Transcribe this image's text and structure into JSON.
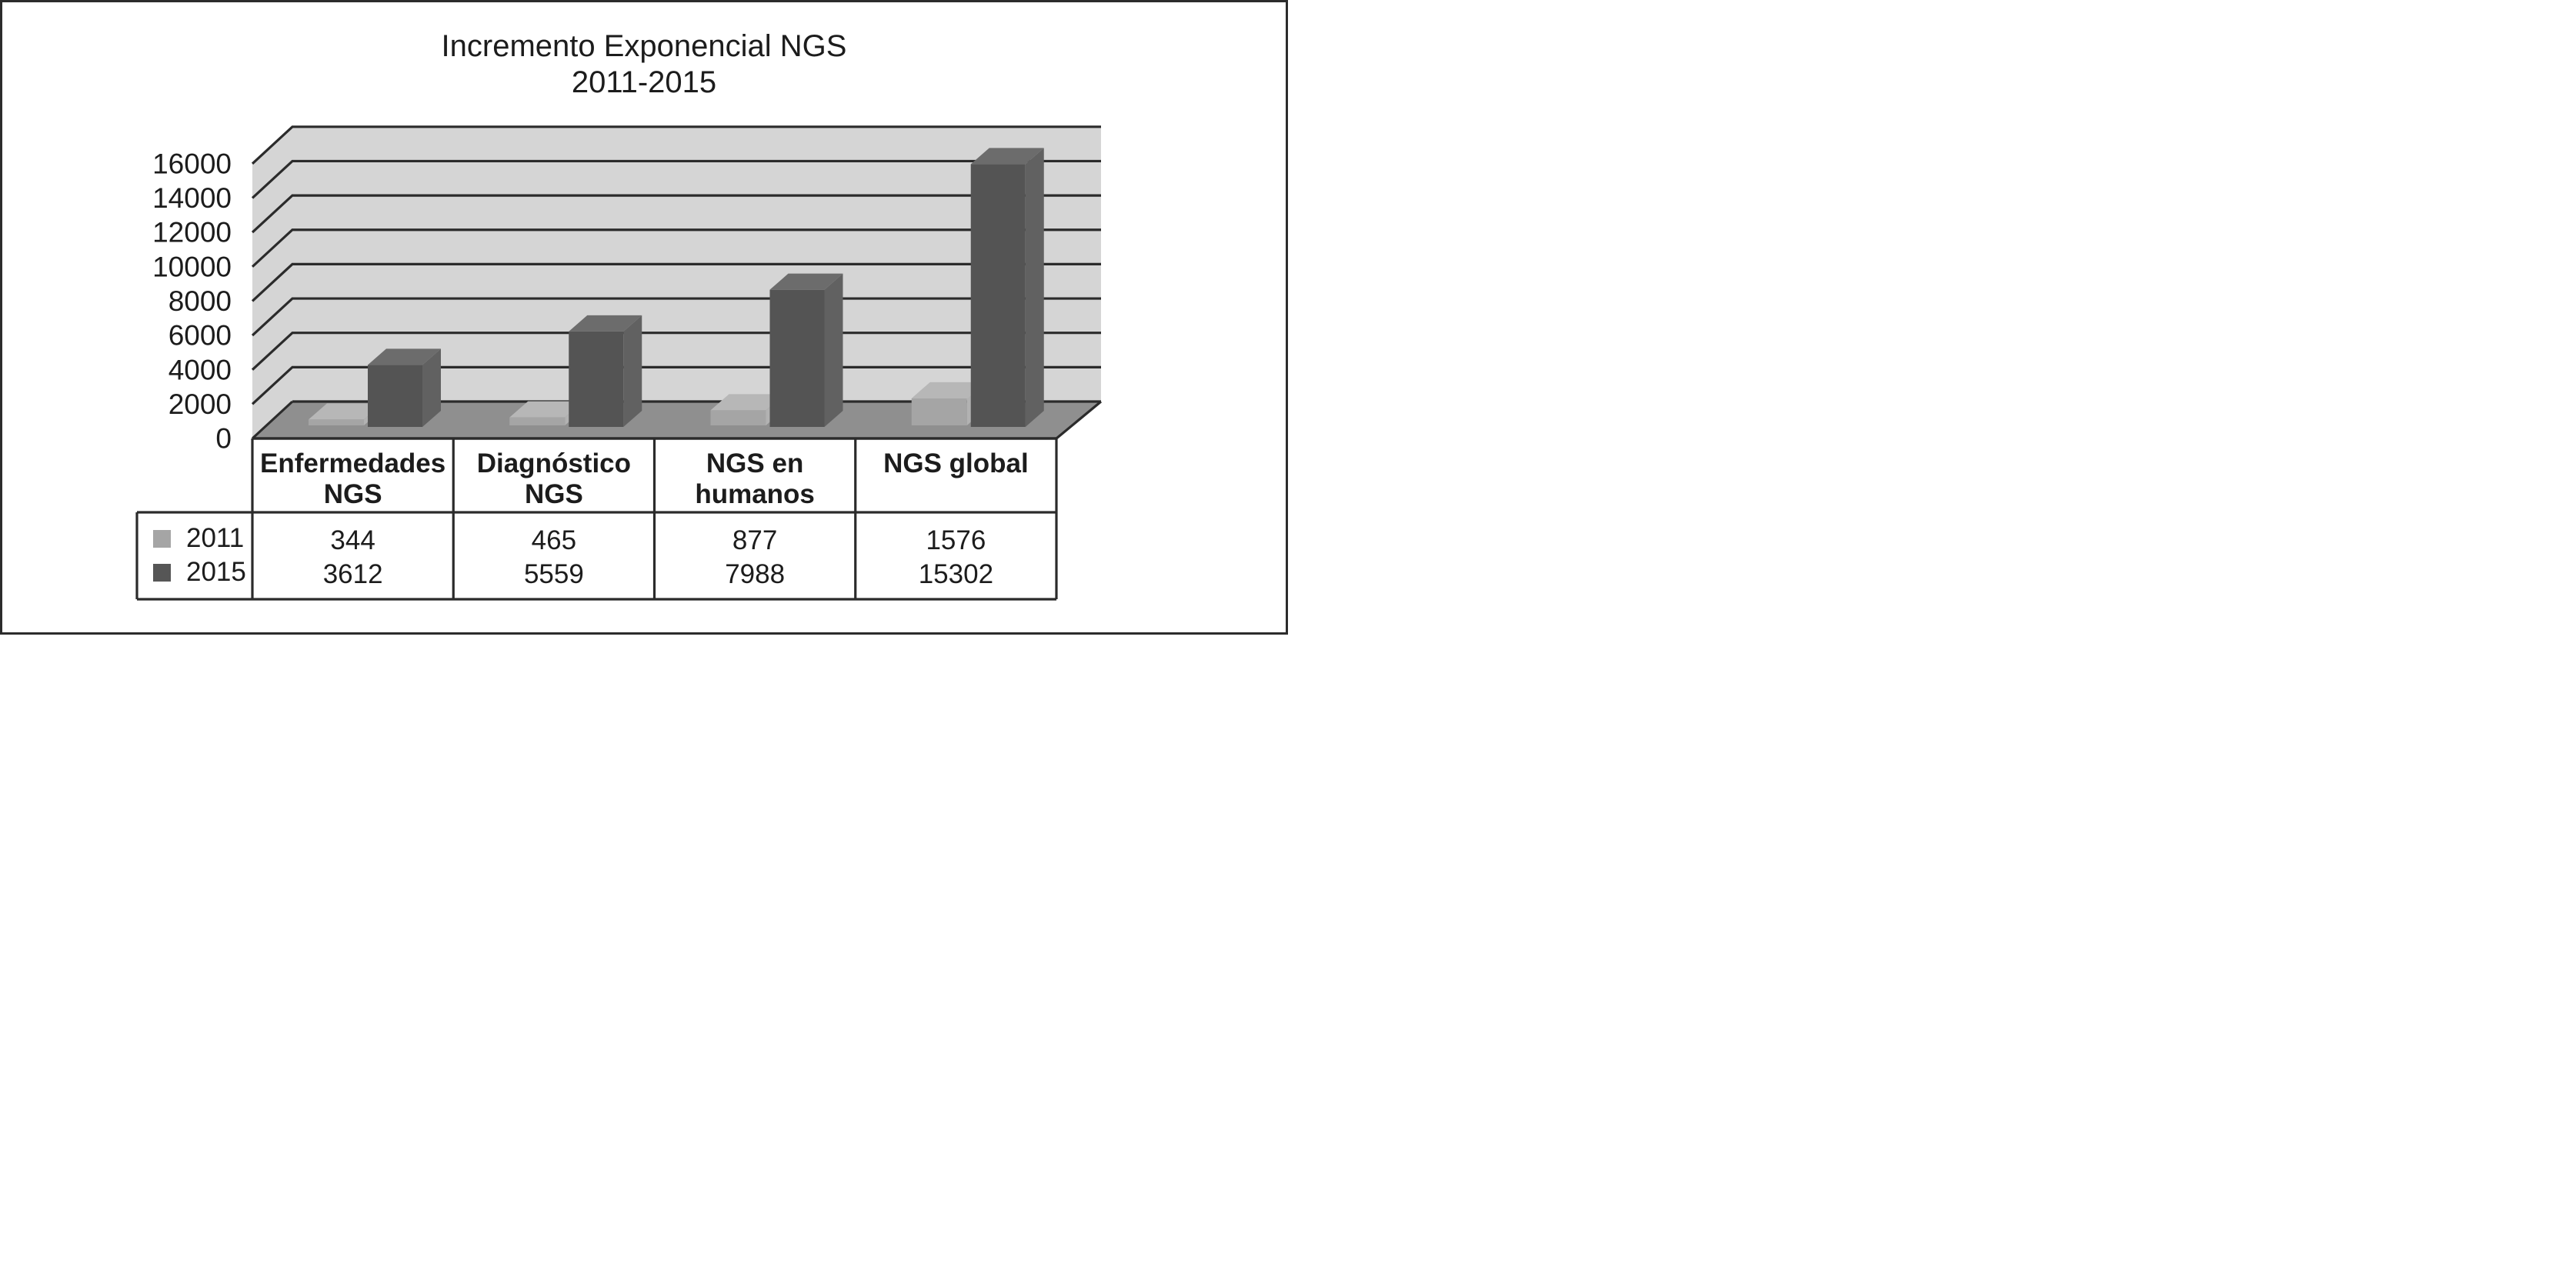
{
  "header": {
    "title_line1": "Incremento Exponencial NGS",
    "title_line2": "2011-2015"
  },
  "chart_data": {
    "type": "bar",
    "projection": "3d-oblique-columns",
    "title": "Incremento Exponencial NGS",
    "subtitle": "2011-2015",
    "categories": [
      "Enfermedades NGS",
      "Diagnóstico NGS",
      "NGS en humanos",
      "NGS global"
    ],
    "category_label_lines": [
      [
        "Enfermedades",
        "NGS"
      ],
      [
        "Diagnóstico",
        "NGS"
      ],
      [
        "NGS en",
        "humanos"
      ],
      [
        "NGS global"
      ]
    ],
    "series": [
      {
        "name": "2011",
        "values": [
          344,
          465,
          877,
          1576
        ],
        "colors": {
          "front": "#a5a5a5",
          "top": "#b7b7b7",
          "side": "#b2b2b2",
          "legend": "#a5a5a5"
        }
      },
      {
        "name": "2015",
        "values": [
          3612,
          5559,
          7988,
          15302
        ],
        "colors": {
          "front": "#545454",
          "top": "#6c6c6c",
          "side": "#616161",
          "legend": "#565656"
        }
      }
    ],
    "xlabel": "",
    "ylabel": "",
    "ylim": [
      0,
      16000
    ],
    "ytick_step": 2000,
    "ytick_labels": [
      "0",
      "2000",
      "4000",
      "6000",
      "8000",
      "10000",
      "12000",
      "14000",
      "16000"
    ],
    "grid": true,
    "legend_position": "bottom-left of attached data table",
    "data_table_shown": true,
    "colors": {
      "wall": "#d5d5d5",
      "floor": "#8f8f8f",
      "line": "#2b2b2b",
      "text": "#1c1c1c",
      "frame": "#2c2c2c",
      "background": "#ffffff"
    }
  }
}
